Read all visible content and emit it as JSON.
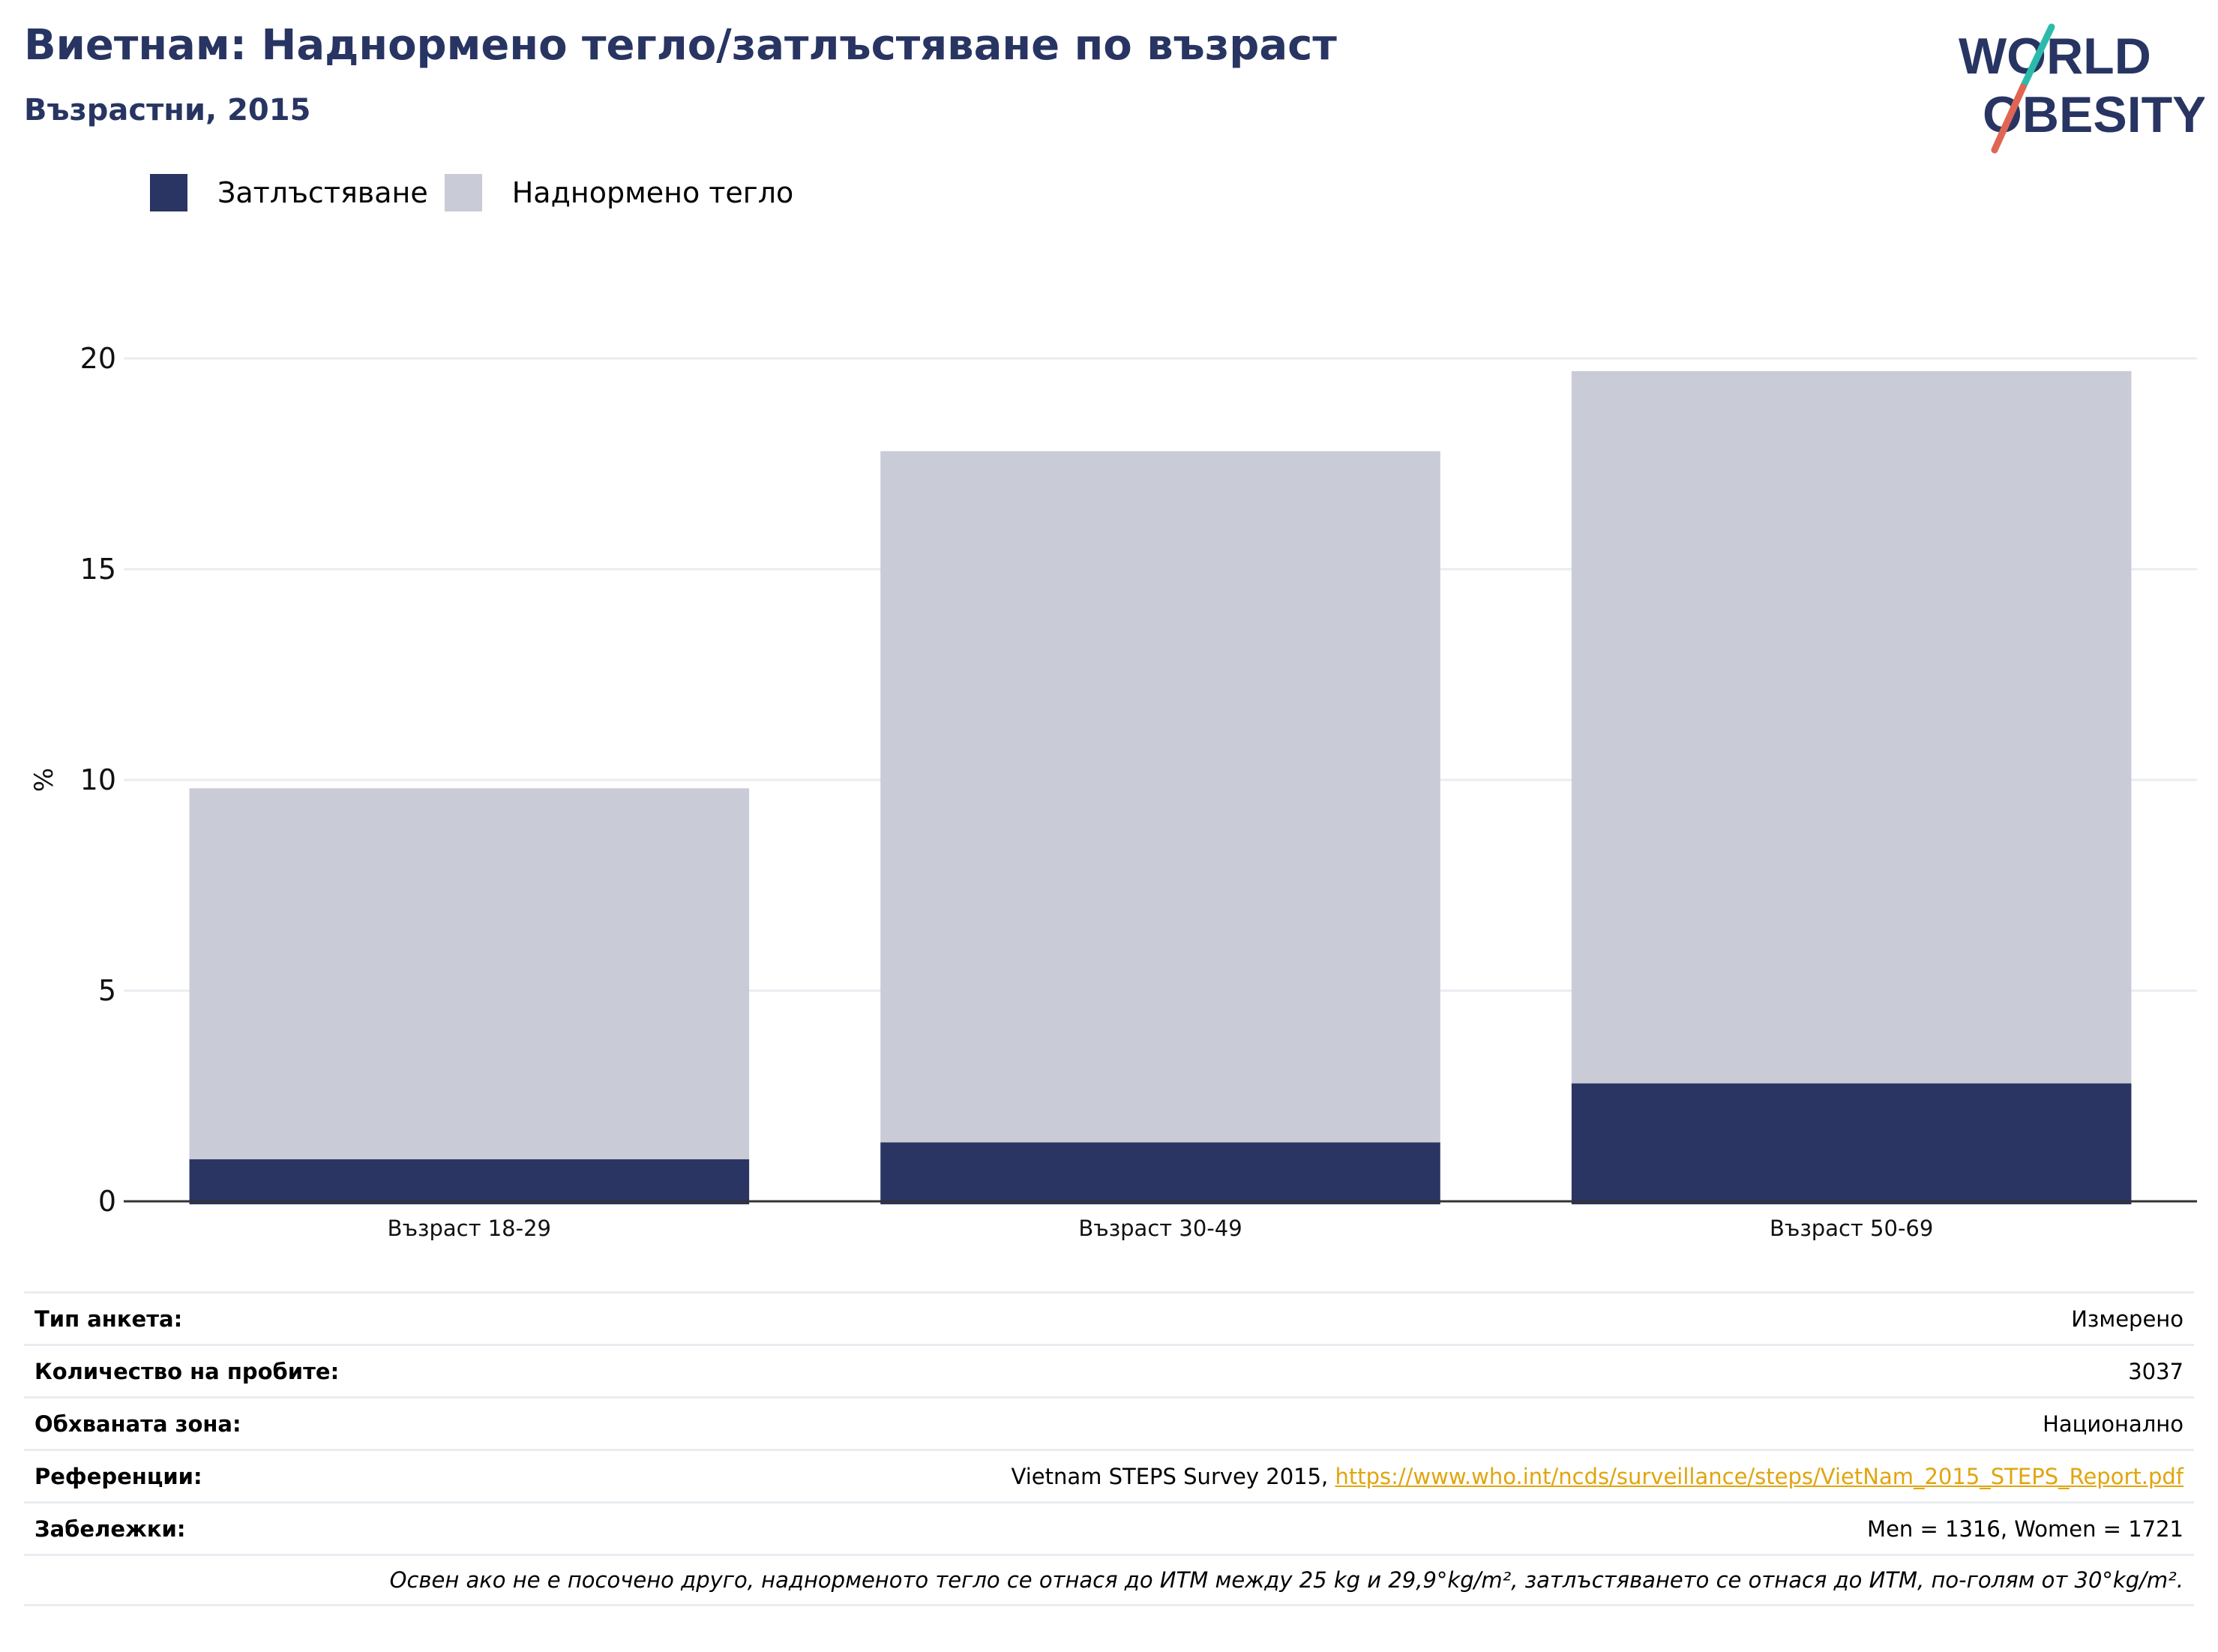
{
  "header": {
    "title": "Виетнам: Наднормено тегло/затлъстяване по възраст",
    "subtitle": "Възрастни, 2015",
    "logo_line1": "WORLD",
    "logo_line2": "OBESITY"
  },
  "colors": {
    "obesity": "#2a3563",
    "overweight": "#c9cbd7",
    "title": "#283562",
    "link": "#e0a50f",
    "logo_teal": "#2bbbad",
    "logo_red": "#e06552"
  },
  "legend": {
    "items": [
      {
        "label": "Затлъстяване",
        "color": "#2a3563"
      },
      {
        "label": "Наднормено тегло",
        "color": "#c9cbd7"
      }
    ]
  },
  "chart_data": {
    "type": "bar",
    "stacked": true,
    "categories": [
      "Възраст 18-29",
      "Възраст 30-49",
      "Възраст 50-69"
    ],
    "series": [
      {
        "name": "Затлъстяване",
        "values": [
          1.0,
          1.4,
          2.8
        ]
      },
      {
        "name": "Наднормено тегло",
        "values": [
          8.8,
          16.4,
          16.9
        ]
      }
    ],
    "ylabel": "%",
    "ylim": [
      0,
      20
    ],
    "yticks": [
      "0",
      "5",
      "10",
      "15",
      "20"
    ],
    "grid": true
  },
  "meta": {
    "survey_type_label": "Тип анкета:",
    "survey_type_value": "Измерено",
    "sample_size_label": "Количество на пробите:",
    "sample_size_value": "3037",
    "area_label": "Обхваната зона:",
    "area_value": "Национално",
    "references_label": "Референции:",
    "references_text": "Vietnam STEPS Survey 2015, ",
    "references_link": "https://www.who.int/ncds/surveillance/steps/VietNam_2015_STEPS_Report.pdf",
    "notes_label": "Забележки:",
    "notes_value": "Men = 1316, Women = 1721",
    "footnote": "Освен ако не е посочено друго, наднорменото тегло се отнася до ИТМ между 25 kg и 29,9°kg/m², затлъстяването се отнася до ИТМ, по-голям от 30°kg/m²."
  }
}
